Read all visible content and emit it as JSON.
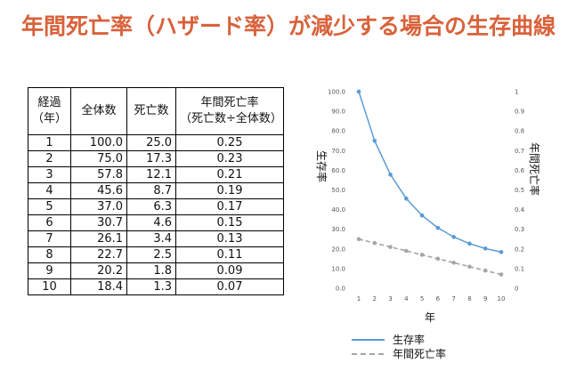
{
  "title": "年間死亡率（ハザード率）が減少する場合の生存曲線",
  "table": {
    "headers": {
      "elapsed": [
        "経過",
        "（年）"
      ],
      "total": "全体数",
      "deaths": "死亡数",
      "rate": [
        "年間死亡率",
        "（死亡数÷全体数）"
      ]
    },
    "rows": [
      [
        "1",
        "100.0",
        "25.0",
        "0.25"
      ],
      [
        "2",
        "75.0",
        "17.3",
        "0.23"
      ],
      [
        "3",
        "57.8",
        "12.1",
        "0.21"
      ],
      [
        "4",
        "45.6",
        "8.7",
        "0.19"
      ],
      [
        "5",
        "37.0",
        "6.3",
        "0.17"
      ],
      [
        "6",
        "30.7",
        "4.6",
        "0.15"
      ],
      [
        "7",
        "26.1",
        "3.4",
        "0.13"
      ],
      [
        "8",
        "22.7",
        "2.5",
        "0.11"
      ],
      [
        "9",
        "20.2",
        "1.8",
        "0.09"
      ],
      [
        "10",
        "18.4",
        "1.3",
        "0.07"
      ]
    ]
  },
  "chart_data": {
    "type": "line",
    "x": [
      1,
      2,
      3,
      4,
      5,
      6,
      7,
      8,
      9,
      10
    ],
    "xlabel": "年",
    "ylabel": "生存率",
    "y2label": "年間死亡率",
    "ylim": [
      0,
      100
    ],
    "y2lim": [
      0,
      1
    ],
    "yticks": [
      "0.0",
      "10.0",
      "20.0",
      "30.0",
      "40.0",
      "50.0",
      "60.0",
      "70.0",
      "80.0",
      "90.0",
      "100.0"
    ],
    "y2ticks": [
      "0",
      "0.1",
      "0.2",
      "0.3",
      "0.4",
      "0.5",
      "0.6",
      "0.7",
      "0.8",
      "0.9",
      "1"
    ],
    "series": [
      {
        "name": "生存率",
        "axis": "left",
        "style": "solid",
        "color": "#5b9bd5",
        "values": [
          100.0,
          75.0,
          57.8,
          45.6,
          37.0,
          30.7,
          26.1,
          22.7,
          20.2,
          18.4
        ]
      },
      {
        "name": "年間死亡率",
        "axis": "right",
        "style": "dashed",
        "color": "#a5a5a5",
        "values": [
          0.25,
          0.23,
          0.21,
          0.19,
          0.17,
          0.15,
          0.13,
          0.11,
          0.09,
          0.07
        ]
      }
    ],
    "legend": "bottom"
  },
  "colors": {
    "title": "#d9623b",
    "survival": "#5b9bd5",
    "hazard": "#a5a5a5"
  }
}
